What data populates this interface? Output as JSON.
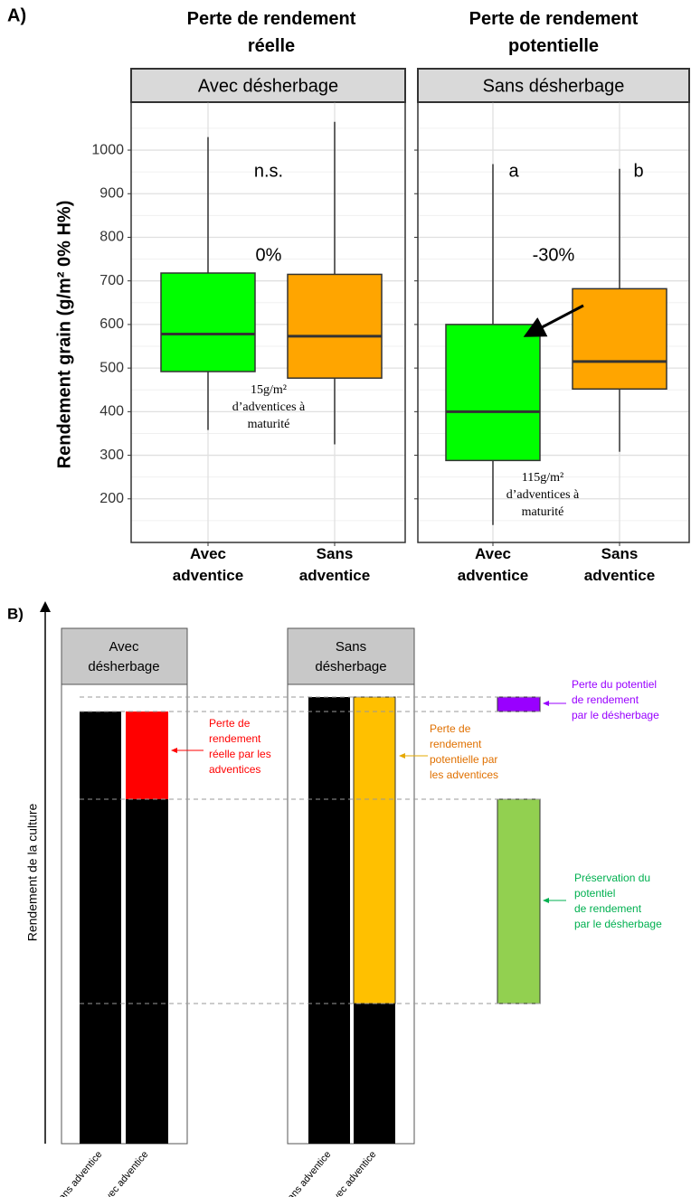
{
  "chart_data": {
    "type": "boxplot",
    "label": "A)",
    "ylabel": "Rendement grain (g/m² 0% H%)",
    "categories": [
      "Avec\nadventice",
      "Sans\nadventice"
    ],
    "colors": [
      "#00ff00",
      "#ffa500"
    ],
    "ylim": [
      100,
      1110
    ],
    "yticks": [
      200,
      300,
      400,
      500,
      600,
      700,
      800,
      900,
      1000
    ],
    "minor_yticks": [
      150,
      250,
      350,
      450,
      550,
      650,
      750,
      850,
      950,
      1050
    ],
    "grid": true,
    "facets": [
      {
        "title": "Perte de rendement\nréelle",
        "strip": "Avec désherbage",
        "boxes": [
          {
            "whislo": 358,
            "q1": 492,
            "med": 578,
            "q3": 718,
            "whishi": 1030
          },
          {
            "whislo": 325,
            "q1": 477,
            "med": 573,
            "q3": 715,
            "whishi": 1065
          }
        ],
        "annotations": [
          "n.s.",
          "0%",
          "15g/m²\nd’adventices à\nmaturité"
        ]
      },
      {
        "title": "Perte de rendement\npotentielle",
        "strip": "Sans désherbage",
        "boxes": [
          {
            "whislo": 140,
            "q1": 288,
            "med": 400,
            "q3": 600,
            "whishi": 968
          },
          {
            "whislo": 308,
            "q1": 452,
            "med": 515,
            "q3": 682,
            "whishi": 957
          }
        ],
        "annotations": [
          "a",
          "b",
          "-30%",
          "115g/m²\nd’adventices à\nmaturité"
        ]
      }
    ]
  },
  "diagram": {
    "label": "B)",
    "ylabel": "Rendement de la culture",
    "panels": [
      {
        "strip": "Avec\ndésherbage",
        "bars": [
          "Sans adventice",
          "Avec adventice"
        ]
      },
      {
        "strip": "Sans\ndésherbage",
        "bars": [
          "Sans adventice",
          "Avec adventice"
        ]
      }
    ],
    "notes": [
      "Perte de\nrendement\nréelle par les\nadventices",
      "Perte de\nrendement\npotentielle par\nles adventices",
      "Perte du potentiel\nde rendement\npar le désherbage",
      "Préservation du\npotentiel\nde rendement\npar le désherbage"
    ]
  }
}
